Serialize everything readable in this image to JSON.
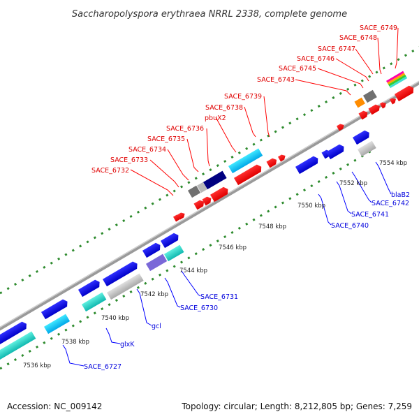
{
  "title": "Saccharopolyspora erythraea NRRL 2338, complete genome",
  "footer": {
    "accession": "Accession: NC_009142",
    "topology": "Topology: circular; Length: 8,212,805 bp; Genes: 7,259"
  },
  "colors": {
    "backbone": "#a0a0a0",
    "tick_mark": "#2e8b2e",
    "label_red": "#e00000",
    "label_blue": "#0000dd",
    "leader_red": "#ff0000",
    "leader_blue": "#0000ff"
  },
  "ticks": [
    "7536 kbp",
    "7538 kbp",
    "7540 kbp",
    "7542 kbp",
    "7544 kbp",
    "7546 kbp",
    "7548 kbp",
    "7550 kbp",
    "7552 kbp",
    "7554 kbp"
  ],
  "red_labels": [
    "SACE_6732",
    "SACE_6733",
    "SACE_6734",
    "SACE_6735",
    "SACE_6736",
    "pbuX2",
    "SACE_6738",
    "SACE_6739",
    "SACE_6743",
    "SACE_6745",
    "SACE_6746",
    "SACE_6747",
    "SACE_6748",
    "SACE_6749"
  ],
  "blue_labels": [
    "SACE_6727",
    "glxK",
    "gcl",
    "SACE_6730",
    "SACE_6731",
    "SACE_6740",
    "SACE_6741",
    "SACE_6742",
    "blaB2"
  ],
  "legend_colors": {
    "forward_cds": "#ff0000",
    "reverse_cds": "#0000ee",
    "cds_dark": "#000080",
    "cds_cyan": "#00bfff",
    "cds_teal": "#20d0c8",
    "cds_grey": "#c0c0c0",
    "cds_darkgrey": "#707070",
    "cds_purple": "#7a68d8",
    "cds_orange": "#ff8c00"
  }
}
